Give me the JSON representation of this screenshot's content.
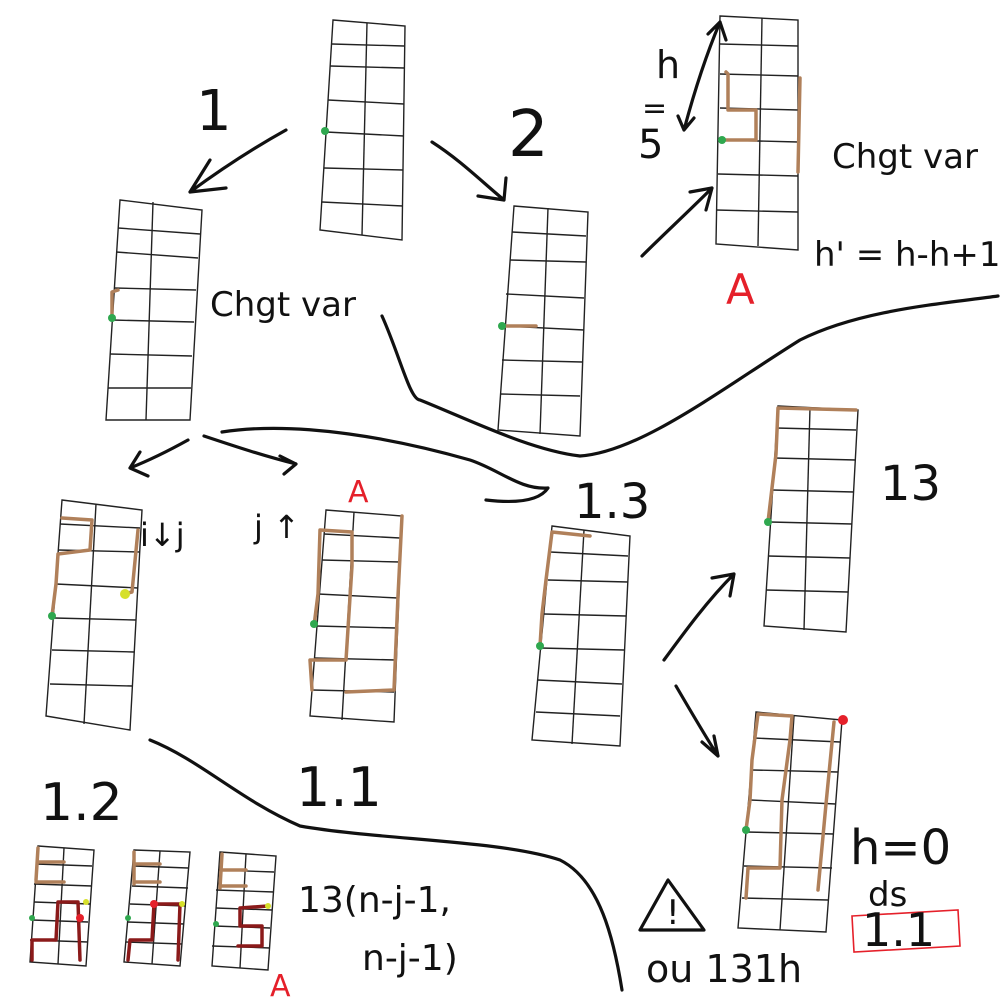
{
  "colors": {
    "ink": "#111111",
    "path": "#b0805a",
    "dark_path": "#8b1a1a",
    "start_dot": "#2fa84f",
    "end_dot_red": "#e5202a",
    "end_dot_yellow": "#d6e02a",
    "accent_red": "#e5202a"
  },
  "labels": {
    "branch_1": "1",
    "branch_2": "2",
    "chgt_var_top": "Chgt var",
    "chgt_var_mid": "Chgt var",
    "h_letter": "h",
    "equals": "=",
    "five": "5",
    "h_prime_formula": "h' = h-h+1",
    "a_top": "A",
    "i_down_j": "i↓j",
    "j_up": "j ↑",
    "a_mid": "A",
    "label_1_3_arrow": "1.3",
    "label_13_right": "13",
    "label_1_1": "1.1",
    "label_1_2": "1.2",
    "formula_13_line1": "13(n-j-1,",
    "formula_13_line2": "n-j-1)",
    "a_bottom": "A",
    "warning_symbol": "!",
    "ou_131h": "ou 131h",
    "h_zero": "h=0",
    "ds": "ds",
    "boxed_1_1": "1.1"
  }
}
